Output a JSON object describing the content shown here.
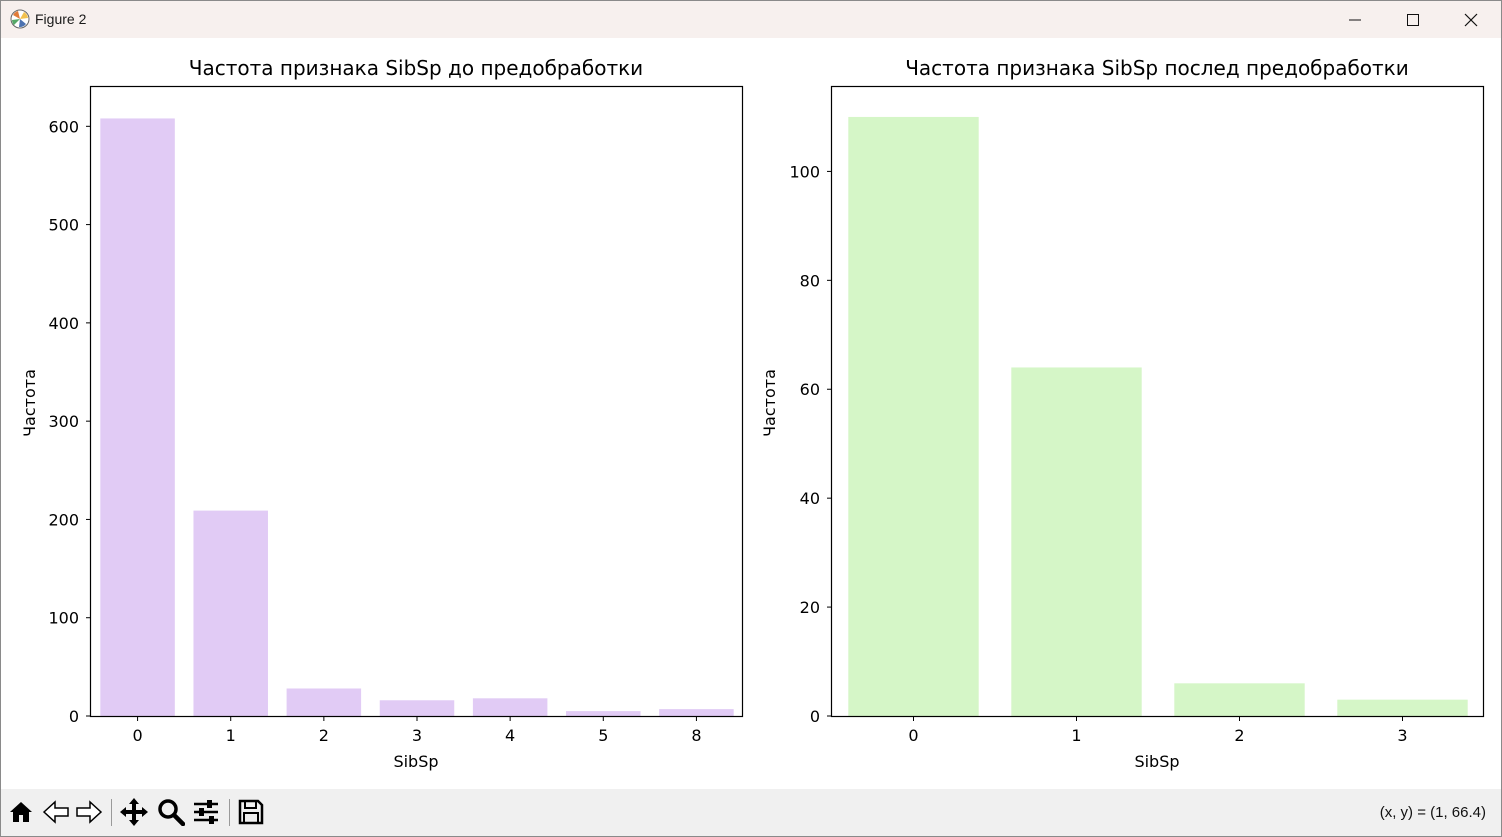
{
  "window": {
    "title": "Figure 2",
    "controls": [
      "minimize-icon",
      "maximize-icon",
      "close-icon"
    ]
  },
  "toolbar": {
    "tools": [
      "home-icon",
      "back-arrow-icon",
      "forward-arrow-icon",
      "pan-icon",
      "zoom-icon",
      "configure-subplots-icon",
      "save-icon"
    ],
    "coordinates": "(x, y) = (1, 66.4)"
  },
  "colors": {
    "left_bars": "#e1cbf5",
    "right_bars": "#d5f6c7",
    "titlebar": "#f7f0ee",
    "toolbar": "#f0f0f0"
  },
  "chart_data": [
    {
      "type": "bar",
      "title": "Частота признака SibSp до предобработки",
      "xlabel": "SibSp",
      "ylabel": "Частота",
      "categories": [
        "0",
        "1",
        "2",
        "3",
        "4",
        "5",
        "8"
      ],
      "values": [
        608,
        209,
        28,
        16,
        18,
        5,
        7
      ],
      "ylim": [
        0,
        640
      ],
      "yticks": [
        0,
        100,
        200,
        300,
        400,
        500,
        600
      ],
      "grid": false,
      "color": "#e1cbf5"
    },
    {
      "type": "bar",
      "title": "Частота признака SibSp послед предобработки",
      "xlabel": "SibSp",
      "ylabel": "Частота",
      "categories": [
        "0",
        "1",
        "2",
        "3"
      ],
      "values": [
        110,
        64,
        6,
        3
      ],
      "ylim": [
        0,
        115.5
      ],
      "yticks": [
        0,
        20,
        40,
        60,
        80,
        100
      ],
      "grid": false,
      "color": "#d5f6c7"
    }
  ]
}
